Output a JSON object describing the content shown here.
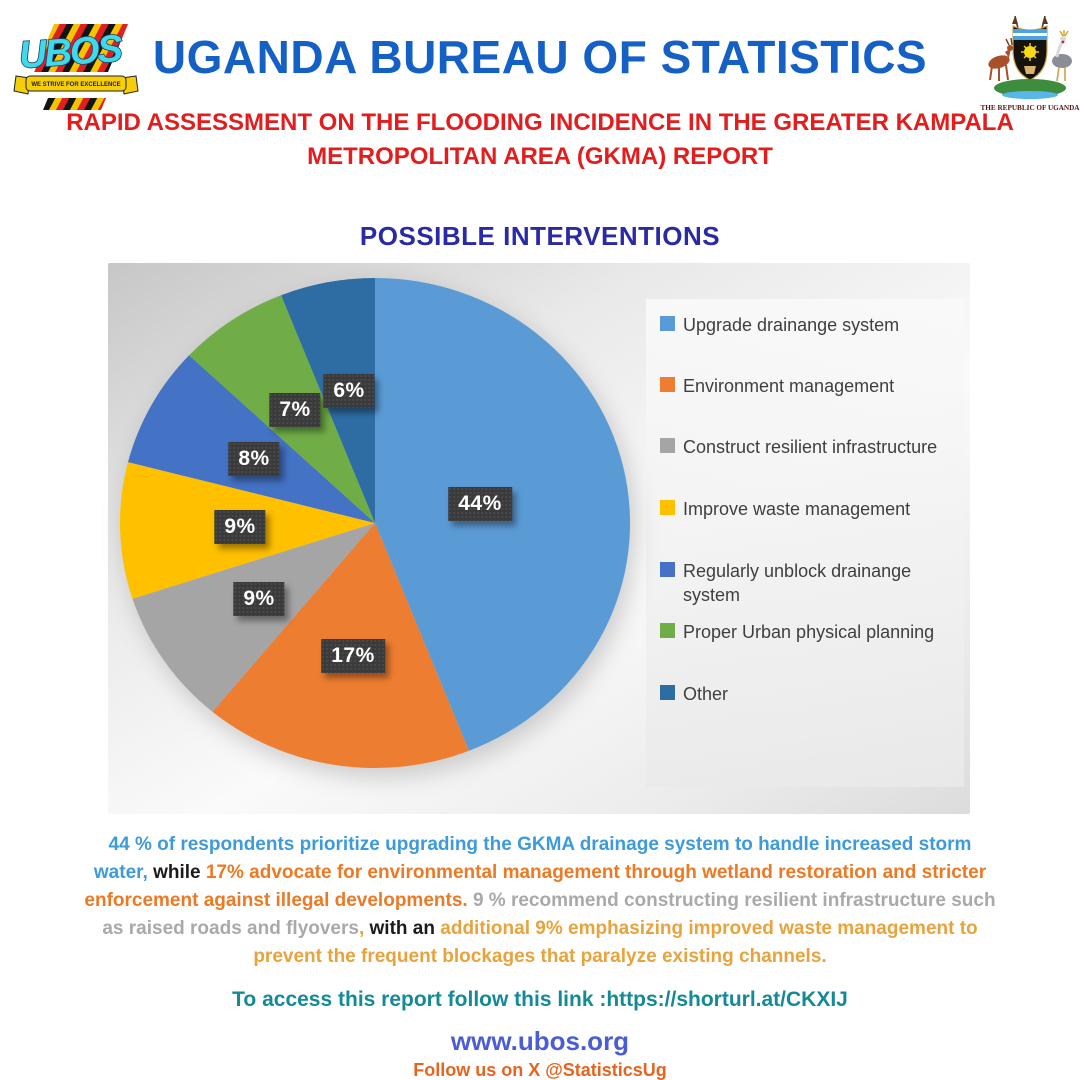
{
  "header": {
    "title": "UGANDA BUREAU OF STATISTICS",
    "title_color": "#1460C4",
    "logo": {
      "acronym": "UBOS",
      "ribbon_text": "WE STRIVE FOR EXCELLENCE"
    },
    "coat_of_arms_caption": "THE REPUBLIC OF UGANDA"
  },
  "subtitle": {
    "color": "#E31D1D",
    "line1": "RAPID ASSESSMENT ON THE FLOODING INCIDENCE IN THE GREATER KAMPALA",
    "line2": "METROPOLITAN AREA (GKMA) REPORT"
  },
  "chart_title": {
    "text": "POSSIBLE INTERVENTIONS",
    "color": "#2A2AA5"
  },
  "chart_data": {
    "type": "pie",
    "title": "POSSIBLE INTERVENTIONS",
    "start_angle": "12-oclock, clockwise",
    "legend_position": "right",
    "categories": [
      "Upgrade drainange system",
      "Environment management",
      "Construct resilient infrastructure",
      "Improve waste management",
      "Regularly unblock drainange system",
      "Proper Urban physical planning",
      "Other"
    ],
    "values": [
      44,
      17,
      9,
      9,
      8,
      7,
      6
    ],
    "value_suffix": "%",
    "data_labels": [
      "44%",
      "17%",
      "9%",
      "9%",
      "8%",
      "7%",
      "6%"
    ],
    "colors": [
      "#5B9BD5",
      "#ED7D31",
      "#A5A5A5",
      "#FFC000",
      "#4472C4",
      "#70AD47",
      "#2E6DA4"
    ],
    "label_box_color": "#3A3A3A",
    "label_text_color": "#FFFFFF",
    "legend_text_color": "#3F3F3F"
  },
  "summary": {
    "colors": {
      "blue": "#3D9BDB",
      "black": "#1B1B1B",
      "orange": "#EC7A25",
      "gray": "#A9A9A9",
      "gold": "#E8A33D"
    },
    "lines": [
      [
        {
          "t": "44 % of respondents prioritize upgrading the GKMA drainage system to handle increased storm",
          "c": "blue"
        }
      ],
      [
        {
          "t": "water, ",
          "c": "blue"
        },
        {
          "t": "while ",
          "c": "black"
        },
        {
          "t": "17% advocate for environmental management through wetland restoration and stricter",
          "c": "orange"
        }
      ],
      [
        {
          "t": "enforcement against illegal developments. ",
          "c": "orange"
        },
        {
          "t": "9 % recommend constructing resilient infrastructure such",
          "c": "gray"
        }
      ],
      [
        {
          "t": "as raised roads and flyovers",
          "c": "gray"
        },
        {
          "t": ", ",
          "c": "gold"
        },
        {
          "t": "with an ",
          "c": "black"
        },
        {
          "t": "additional 9% emphasizing improved waste management to",
          "c": "gold"
        }
      ],
      [
        {
          "t": "prevent the frequent blockages that paralyze existing channels.",
          "c": "gold"
        }
      ]
    ]
  },
  "footer": {
    "report_link": {
      "text": "To access this report follow this link :https://shorturl.at/CKXIJ",
      "color": "#148A97"
    },
    "website": {
      "text": "www.ubos.org",
      "color": "#4A5CD6"
    },
    "social": {
      "text": "Follow us on X @StatisticsUg",
      "color": "#E8641E"
    }
  }
}
